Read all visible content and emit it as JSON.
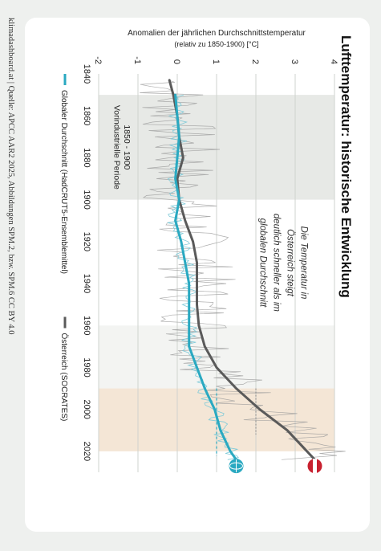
{
  "title": "Lufttemperatur: historische Entwicklung",
  "credit": "klimadashboard.at | Quelle: APCC AAR2 2025, Abbildungen SPM.2, bzw. SPM.6  CC BY 4.0",
  "annotation": [
    "Die Temperatur in",
    "Österreich steigt",
    "deutlich schneller als im",
    "globalen Durchschnitt"
  ],
  "period_label": [
    "1850 - 1900",
    "Vorindustrielle Periode"
  ],
  "colors": {
    "global": "#2aa9c1",
    "austria": "#5a5a5a",
    "preindustrial_band": "#e7e9e6",
    "recent_band": "#f4e6d6",
    "mid_band": "#f3f4f2"
  },
  "icons": {
    "austria": "austria-flag-icon",
    "global": "globe-icon"
  },
  "chart_data": {
    "type": "line",
    "xlabel": "",
    "ylabel": "Anomalien der jährlichen Durchschnittstemperatur",
    "ylabel2": "(relativ zu 1850-1900) [°C]",
    "xlim": [
      1840,
      2030
    ],
    "ylim": [
      -2,
      4
    ],
    "xticks": [
      1840,
      1860,
      1880,
      1900,
      1920,
      1940,
      1960,
      1980,
      2000,
      2020
    ],
    "yticks": [
      -2,
      -1,
      0,
      1,
      2,
      3,
      4
    ],
    "ytick_labels": [
      "-2",
      "-1",
      "0",
      "1",
      "2",
      "3",
      "4"
    ],
    "legend": [
      {
        "name": "Globaler Durchschnitt (HadCRUT5-Ensemblemittel)",
        "color": "#2aa9c1"
      },
      {
        "name": "Österreich (SOCRATES)",
        "color": "#5a5a5a"
      }
    ],
    "series": [
      {
        "name": "Globaler Durchschnitt (HadCRUT5-Ensemblemittel)",
        "x": [
          1850,
          1860,
          1870,
          1880,
          1890,
          1900,
          1910,
          1920,
          1930,
          1940,
          1950,
          1960,
          1970,
          1980,
          1990,
          2000,
          2010,
          2020,
          2024
        ],
        "values": [
          -0.05,
          0.0,
          0.05,
          0.0,
          -0.05,
          0.05,
          -0.05,
          0.1,
          0.2,
          0.3,
          0.3,
          0.3,
          0.3,
          0.5,
          0.7,
          0.95,
          1.1,
          1.35,
          1.5
        ]
      },
      {
        "name": "Österreich (SOCRATES)",
        "x": [
          1843,
          1850,
          1860,
          1870,
          1880,
          1890,
          1900,
          1910,
          1920,
          1930,
          1940,
          1950,
          1960,
          1970,
          1980,
          1990,
          2000,
          2010,
          2024
        ],
        "values": [
          -0.2,
          -0.1,
          0.0,
          0.05,
          0.15,
          0.0,
          0.05,
          0.2,
          0.4,
          0.5,
          0.5,
          0.5,
          0.55,
          0.7,
          1.0,
          1.5,
          2.1,
          2.8,
          3.5
        ]
      }
    ],
    "annual_noise_global": [
      1850,
      1860,
      1870,
      1880,
      1890,
      1900,
      1910,
      1920,
      1930,
      1940,
      1950,
      1960,
      1970,
      1980,
      1990,
      2000,
      2010,
      2020
    ],
    "reference_lines": [
      {
        "x": 1990,
        "y": 1.0,
        "label": ""
      },
      {
        "x": 1990,
        "y": 2.0,
        "label": ""
      }
    ]
  }
}
